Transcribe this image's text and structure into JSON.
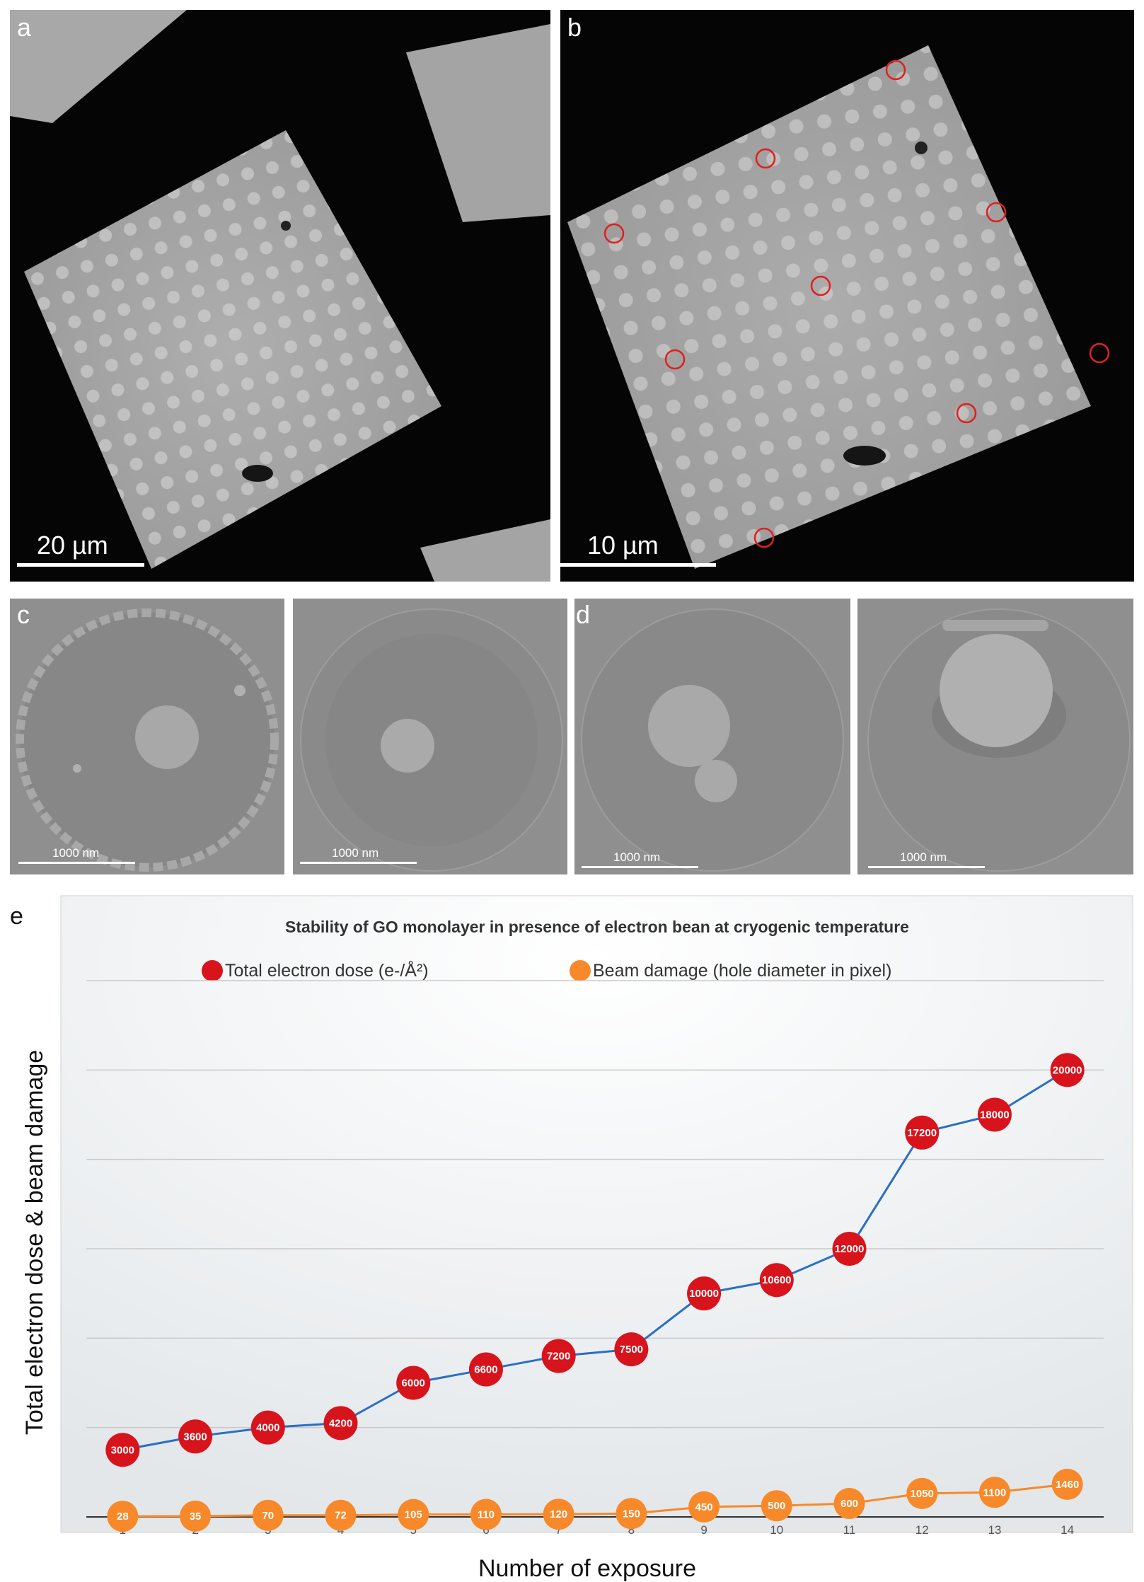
{
  "panels": {
    "a": {
      "letter": "a",
      "scale": "20 µm"
    },
    "b": {
      "letter": "b",
      "scale": "10 µm"
    },
    "c": {
      "letter": "c",
      "scale_left": "1000 nm",
      "scale_right": "1000 nm"
    },
    "d": {
      "letter": "d",
      "scale_left": "1000 nm",
      "scale_right": "1000 nm"
    },
    "e": {
      "letter": "e"
    }
  },
  "colors": {
    "dose_marker": "#d7141c",
    "dose_line": "#2a6fc4",
    "damage_marker": "#f7892a",
    "damage_line": "#f7892a",
    "circle_highlight": "#e02020"
  },
  "chart_data": {
    "type": "line",
    "title": "Stability of GO monolayer in presence of electron bean at cryogenic temperature",
    "xlabel": "Number of exposure",
    "ylabel": "Total electron dose & beam damage",
    "x": [
      1,
      2,
      3,
      4,
      5,
      6,
      7,
      8,
      9,
      10,
      11,
      12,
      13,
      14
    ],
    "ylim": [
      0,
      24000
    ],
    "grid": true,
    "legend_position": "top",
    "series": [
      {
        "name": "Total electron dose (e-/Å²)",
        "values": [
          3000,
          3600,
          4000,
          4200,
          6000,
          6600,
          7200,
          7500,
          10000,
          10600,
          12000,
          17200,
          18000,
          20000
        ]
      },
      {
        "name": "Beam damage (hole diameter in pixel)",
        "values": [
          28,
          35,
          70,
          72,
          105,
          110,
          120,
          150,
          450,
          500,
          600,
          1050,
          1100,
          1460
        ]
      }
    ]
  }
}
